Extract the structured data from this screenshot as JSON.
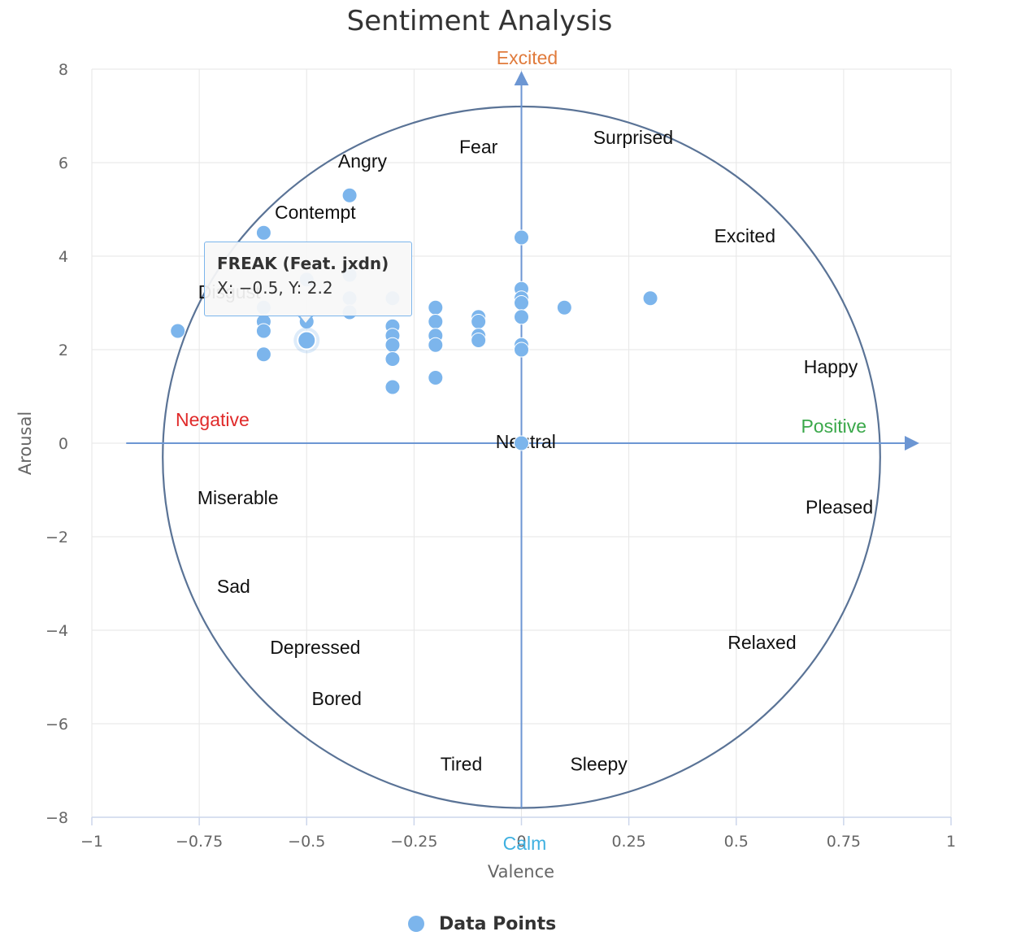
{
  "chart_data": {
    "type": "scatter",
    "title": "Sentiment Analysis",
    "xlabel": "Valence",
    "ylabel": "Arousal",
    "xlim": [
      -1,
      1
    ],
    "ylim": [
      -8,
      8
    ],
    "x_ticks": [
      "−1",
      "−0.75",
      "−0.5",
      "−0.25",
      "0",
      "0.25",
      "0.5",
      "0.75",
      "1"
    ],
    "y_ticks": [
      "8",
      "6",
      "4",
      "2",
      "0",
      "−2",
      "−4",
      "−6",
      "−8"
    ],
    "grid": true,
    "legend_position": "bottom-center",
    "series": [
      {
        "name": "Data Points",
        "color": "#7cb5ec",
        "points": [
          [
            -0.8,
            2.4
          ],
          [
            -0.6,
            4.5
          ],
          [
            -0.6,
            2.9
          ],
          [
            -0.6,
            2.6
          ],
          [
            -0.6,
            2.4
          ],
          [
            -0.6,
            1.9
          ],
          [
            -0.5,
            3.5
          ],
          [
            -0.5,
            2.6
          ],
          [
            -0.5,
            2.2
          ],
          [
            -0.4,
            5.3
          ],
          [
            -0.4,
            3.6
          ],
          [
            -0.4,
            3.1
          ],
          [
            -0.4,
            2.8
          ],
          [
            -0.3,
            3.1
          ],
          [
            -0.3,
            2.5
          ],
          [
            -0.3,
            2.3
          ],
          [
            -0.3,
            2.1
          ],
          [
            -0.3,
            1.8
          ],
          [
            -0.3,
            1.2
          ],
          [
            -0.2,
            2.9
          ],
          [
            -0.2,
            2.6
          ],
          [
            -0.2,
            2.3
          ],
          [
            -0.2,
            2.1
          ],
          [
            -0.2,
            1.4
          ],
          [
            -0.1,
            2.7
          ],
          [
            -0.1,
            2.6
          ],
          [
            -0.1,
            2.3
          ],
          [
            -0.1,
            2.2
          ],
          [
            0,
            4.4
          ],
          [
            0,
            3.3
          ],
          [
            0,
            3.1
          ],
          [
            0,
            3.0
          ],
          [
            0,
            2.7
          ],
          [
            0,
            2.1
          ],
          [
            0,
            2.0
          ],
          [
            0,
            0
          ],
          [
            0.1,
            2.9
          ],
          [
            0.3,
            3.1
          ]
        ]
      }
    ],
    "highlighted_point": [
      -0.5,
      2.2
    ],
    "tooltip": {
      "title": "FREAK (Feat. jxdn)",
      "body": "X: −0.5, Y: 2.2"
    },
    "axis_arrow_labels": {
      "top": {
        "text": "Excited",
        "color": "#e07b3c"
      },
      "bottom": {
        "text": "Calm",
        "color": "#3fb0e0"
      },
      "left": {
        "text": "Negative",
        "color": "#e02a2a"
      },
      "right": {
        "text": "Positive",
        "color": "#3aa84a"
      }
    },
    "emotion_labels": [
      {
        "text": "Surprised",
        "x": 0.26,
        "y": 6.4
      },
      {
        "text": "Fear",
        "x": -0.1,
        "y": 6.2
      },
      {
        "text": "Angry",
        "x": -0.37,
        "y": 5.9
      },
      {
        "text": "Contempt",
        "x": -0.48,
        "y": 4.8
      },
      {
        "text": "Excited",
        "x": 0.52,
        "y": 4.3
      },
      {
        "text": "Disgust",
        "x": -0.68,
        "y": 3.1
      },
      {
        "text": "Happy",
        "x": 0.72,
        "y": 1.5
      },
      {
        "text": "Neutral",
        "x": 0.01,
        "y": -0.1
      },
      {
        "text": "Miserable",
        "x": -0.66,
        "y": -1.3
      },
      {
        "text": "Pleased",
        "x": 0.74,
        "y": -1.5
      },
      {
        "text": "Sad",
        "x": -0.67,
        "y": -3.2
      },
      {
        "text": "Depressed",
        "x": -0.48,
        "y": -4.5
      },
      {
        "text": "Relaxed",
        "x": 0.56,
        "y": -4.4
      },
      {
        "text": "Bored",
        "x": -0.43,
        "y": -5.6
      },
      {
        "text": "Tired",
        "x": -0.14,
        "y": -7.0
      },
      {
        "text": "Sleepy",
        "x": 0.18,
        "y": -7.0
      }
    ],
    "circle": {
      "center": [
        -0.0,
        -0.3
      ],
      "rx": 0.835,
      "ry": 7.5,
      "color": "#5a7396"
    },
    "axes_color": "#6c96d3"
  }
}
